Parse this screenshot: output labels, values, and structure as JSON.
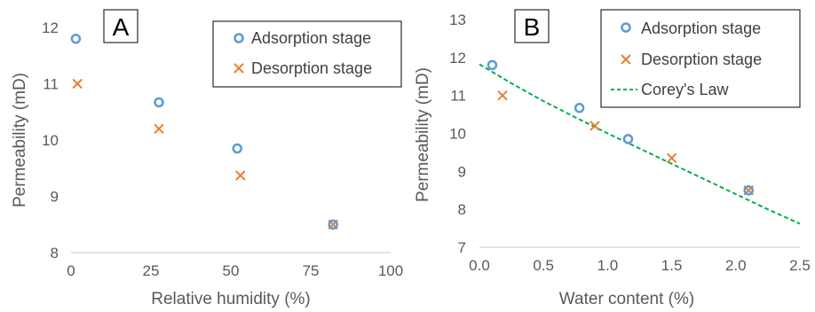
{
  "colors": {
    "adsorption": "#5B9BD5",
    "desorption": "#ED7D31",
    "corey": "#00B050",
    "axis": "#D9D9D9",
    "text": "#595959"
  },
  "chart_data": [
    {
      "panel": "A",
      "type": "scatter",
      "xlabel": "Relative humidity (%)",
      "ylabel": "Permeability (mD)",
      "xlim": [
        0,
        100
      ],
      "ylim": [
        8,
        12
      ],
      "xticks": [
        0,
        25,
        50,
        75,
        100
      ],
      "yticks": [
        8,
        9,
        10,
        11,
        12
      ],
      "grid": false,
      "legend_position": "top-right",
      "series": [
        {
          "name": "Adsorption stage",
          "marker": "circle",
          "color": "#5B9BD5",
          "x": [
            1.5,
            27.5,
            52,
            82
          ],
          "y": [
            11.8,
            10.67,
            9.85,
            8.5
          ]
        },
        {
          "name": "Desorption stage",
          "marker": "x",
          "color": "#ED7D31",
          "x": [
            2,
            27.5,
            53,
            82
          ],
          "y": [
            11.0,
            10.2,
            9.37,
            8.5
          ]
        }
      ]
    },
    {
      "panel": "B",
      "type": "scatter",
      "xlabel": "Water content (%)",
      "ylabel": "Permeability (mD)",
      "xlim": [
        0,
        2.5
      ],
      "ylim": [
        7,
        13
      ],
      "xticks": [
        "0.0",
        "0.5",
        "1.0",
        "1.5",
        "2.0",
        "2.5"
      ],
      "yticks": [
        7,
        8,
        9,
        10,
        11,
        12,
        13
      ],
      "grid": false,
      "legend_position": "top-right",
      "series": [
        {
          "name": "Adsorption stage",
          "marker": "circle",
          "color": "#5B9BD5",
          "x": [
            0.1,
            0.78,
            1.16,
            2.1
          ],
          "y": [
            11.8,
            10.67,
            9.85,
            8.5
          ]
        },
        {
          "name": "Desorption stage",
          "marker": "x",
          "color": "#ED7D31",
          "x": [
            0.18,
            0.9,
            1.5,
            2.1
          ],
          "y": [
            11.0,
            10.2,
            9.35,
            8.5
          ]
        },
        {
          "name": "Corey's Law",
          "marker": "dashed-line",
          "color": "#00B050",
          "x": [
            0.0,
            0.25,
            0.5,
            0.75,
            1.0,
            1.25,
            1.5,
            1.75,
            2.0,
            2.25,
            2.5
          ],
          "y": [
            11.82,
            11.32,
            10.85,
            10.42,
            10.0,
            9.6,
            9.2,
            8.8,
            8.4,
            8.0,
            7.62
          ]
        }
      ]
    }
  ]
}
